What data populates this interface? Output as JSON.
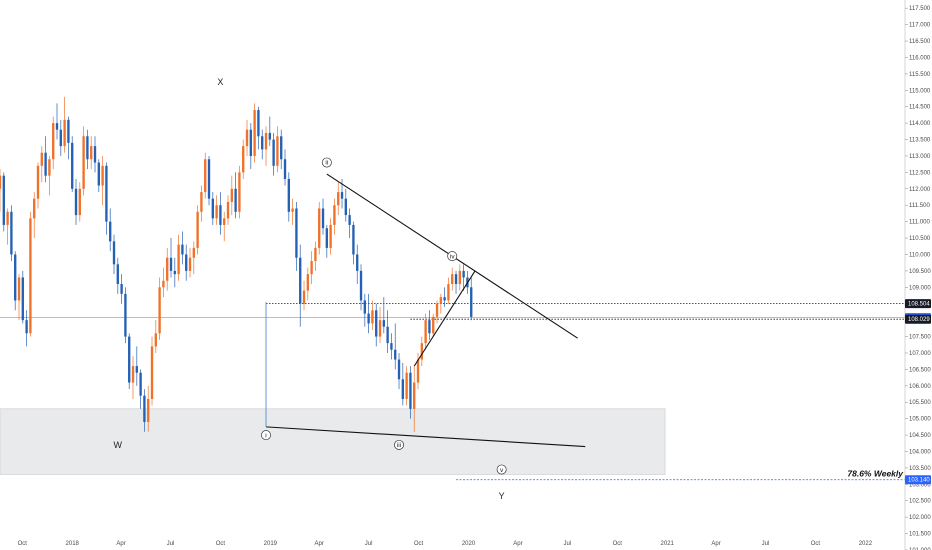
{
  "chart_data": {
    "type": "candlestick",
    "colors": {
      "up": "#f0722a",
      "down": "#2461b5",
      "zone": "#e2e3e5",
      "fib": "#2962ff",
      "badge_dark": "#161a25",
      "badge_blue": "#2962ff"
    },
    "ylim": [
      101.0,
      117.75
    ],
    "xlim": [
      "2017-08-21",
      "2022-03-15"
    ],
    "x_ticks": [
      {
        "label": "Oct",
        "date": "2017-10-01"
      },
      {
        "label": "2018",
        "date": "2018-01-01"
      },
      {
        "label": "Apr",
        "date": "2018-04-01"
      },
      {
        "label": "Jul",
        "date": "2018-07-01"
      },
      {
        "label": "Oct",
        "date": "2018-10-01"
      },
      {
        "label": "2019",
        "date": "2019-01-01"
      },
      {
        "label": "Apr",
        "date": "2019-04-01"
      },
      {
        "label": "Jul",
        "date": "2019-07-01"
      },
      {
        "label": "Oct",
        "date": "2019-10-01"
      },
      {
        "label": "2020",
        "date": "2020-01-01"
      },
      {
        "label": "Apr",
        "date": "2020-04-01"
      },
      {
        "label": "Jul",
        "date": "2020-07-01"
      },
      {
        "label": "Oct",
        "date": "2020-10-01"
      },
      {
        "label": "2021",
        "date": "2021-01-01"
      },
      {
        "label": "Apr",
        "date": "2021-04-01"
      },
      {
        "label": "Jul",
        "date": "2021-07-01"
      },
      {
        "label": "Oct",
        "date": "2021-10-01"
      },
      {
        "label": "2022",
        "date": "2022-01-01"
      }
    ],
    "y_ticks": [
      "101.000",
      "101.500",
      "102.000",
      "102.500",
      "103.000",
      "103.500",
      "104.000",
      "104.500",
      "105.000",
      "105.500",
      "106.000",
      "106.500",
      "107.000",
      "107.500",
      "108.000",
      "108.500",
      "109.000",
      "109.500",
      "110.000",
      "110.500",
      "111.000",
      "111.500",
      "112.000",
      "112.500",
      "113.000",
      "113.500",
      "114.000",
      "114.500",
      "115.000",
      "115.500",
      "116.000",
      "116.500",
      "117.000",
      "117.500"
    ],
    "price_badges": [
      {
        "label": "108.504",
        "price": 108.504,
        "style": "dark"
      },
      {
        "label": "108.075",
        "price": 108.075,
        "style": "blue"
      },
      {
        "label": "108.029",
        "price": 108.029,
        "style": "dark"
      },
      {
        "label": "103.140",
        "price": 103.14,
        "style": "blue"
      }
    ],
    "h_lines": [
      {
        "price": 108.504,
        "from": "2018-12-24",
        "style": "dotted"
      },
      {
        "price": 108.029,
        "from": "2019-09-16",
        "style": "dotted"
      },
      {
        "price": 108.075,
        "from": "2017-08-21",
        "style": "solid-thin"
      }
    ],
    "zone": {
      "from": "2017-08-21",
      "to": "2020-12-28",
      "low": 103.3,
      "high": 105.3
    },
    "fib_line": {
      "price": 103.14,
      "from": "2019-12-09",
      "label": "78.6% Weekly"
    },
    "trend_lines": [
      {
        "from": [
          "2019-04-15",
          112.45
        ],
        "to": [
          "2020-07-20",
          107.45
        ]
      },
      {
        "from": [
          "2018-12-24",
          104.75
        ],
        "to": [
          "2020-08-03",
          104.15
        ]
      },
      {
        "from": [
          "2019-09-23",
          106.6
        ],
        "to": [
          "2020-01-13",
          109.5
        ]
      },
      {
        "from": [
          "2018-12-24",
          108.55
        ],
        "to": [
          "2018-12-24",
          104.75
        ]
      }
    ],
    "wave_labels": [
      {
        "text": "X",
        "date": "2018-10-01",
        "price": 115.25,
        "style": "plain"
      },
      {
        "text": "W",
        "date": "2018-03-26",
        "price": 104.2,
        "style": "plain"
      },
      {
        "text": "Y",
        "date": "2020-03-02",
        "price": 102.65,
        "style": "plain"
      },
      {
        "text": "ii",
        "date": "2019-04-15",
        "price": 112.8,
        "style": "circle"
      },
      {
        "text": "i",
        "date": "2018-12-24",
        "price": 104.5,
        "style": "circle"
      },
      {
        "text": "iii",
        "date": "2019-08-26",
        "price": 104.2,
        "style": "circle"
      },
      {
        "text": "iv",
        "date": "2019-12-02",
        "price": 109.95,
        "style": "circle"
      },
      {
        "text": "v",
        "date": "2020-03-02",
        "price": 103.45,
        "style": "circle"
      }
    ],
    "start_date": "2017-08-21",
    "candles": [
      [
        112.0,
        112.6,
        111.3,
        112.4
      ],
      [
        112.4,
        112.5,
        110.7,
        110.9
      ],
      [
        110.9,
        111.4,
        110.3,
        111.3
      ],
      [
        111.3,
        111.5,
        109.8,
        110.0
      ],
      [
        110.0,
        110.1,
        108.3,
        108.6
      ],
      [
        108.6,
        109.4,
        108.0,
        109.3
      ],
      [
        109.3,
        109.5,
        107.9,
        108.0
      ],
      [
        108.0,
        108.3,
        107.2,
        107.6
      ],
      [
        107.6,
        111.3,
        107.5,
        111.1
      ],
      [
        111.1,
        111.9,
        110.5,
        111.7
      ],
      [
        111.7,
        112.8,
        111.4,
        112.7
      ],
      [
        112.7,
        113.3,
        112.2,
        113.1
      ],
      [
        113.1,
        113.6,
        112.2,
        112.4
      ],
      [
        112.4,
        113.0,
        111.8,
        112.9
      ],
      [
        112.9,
        114.2,
        112.6,
        114.0
      ],
      [
        114.0,
        114.6,
        113.5,
        113.8
      ],
      [
        113.8,
        114.1,
        113.0,
        113.3
      ],
      [
        113.3,
        114.8,
        113.1,
        114.1
      ],
      [
        114.1,
        114.2,
        112.9,
        113.4
      ],
      [
        113.4,
        113.6,
        111.9,
        112.0
      ],
      [
        112.0,
        112.3,
        110.9,
        111.2
      ],
      [
        111.2,
        112.2,
        111.0,
        112.0
      ],
      [
        112.0,
        113.9,
        111.8,
        113.6
      ],
      [
        113.6,
        113.8,
        112.6,
        112.9
      ],
      [
        112.9,
        113.6,
        112.6,
        113.3
      ],
      [
        113.3,
        113.6,
        112.5,
        112.8
      ],
      [
        112.8,
        112.9,
        111.9,
        112.1
      ],
      [
        112.1,
        113.0,
        111.5,
        112.7
      ],
      [
        112.7,
        112.8,
        110.6,
        111.0
      ],
      [
        111.0,
        111.4,
        110.1,
        110.4
      ],
      [
        110.4,
        110.6,
        109.4,
        109.7
      ],
      [
        109.7,
        109.9,
        108.8,
        109.1
      ],
      [
        109.1,
        109.4,
        108.5,
        108.8
      ],
      [
        108.8,
        109.0,
        107.3,
        107.5
      ],
      [
        107.5,
        107.6,
        105.9,
        106.1
      ],
      [
        106.1,
        106.9,
        105.6,
        106.6
      ],
      [
        106.6,
        107.2,
        106.0,
        106.4
      ],
      [
        106.4,
        106.5,
        105.3,
        105.7
      ],
      [
        105.7,
        105.9,
        104.6,
        104.9
      ],
      [
        104.9,
        106.0,
        104.6,
        105.6
      ],
      [
        105.6,
        107.5,
        105.4,
        107.2
      ],
      [
        107.2,
        108.0,
        107.0,
        107.6
      ],
      [
        107.6,
        109.3,
        107.4,
        109.0
      ],
      [
        109.0,
        109.6,
        108.7,
        109.2
      ],
      [
        109.2,
        110.2,
        108.9,
        109.9
      ],
      [
        109.9,
        110.5,
        109.3,
        109.5
      ],
      [
        109.5,
        109.9,
        109.0,
        109.4
      ],
      [
        109.4,
        110.6,
        109.2,
        110.3
      ],
      [
        110.3,
        110.7,
        109.7,
        110.0
      ],
      [
        110.0,
        110.3,
        109.2,
        109.5
      ],
      [
        109.5,
        110.2,
        109.3,
        109.9
      ],
      [
        109.9,
        110.4,
        109.4,
        110.2
      ],
      [
        110.2,
        111.5,
        110.0,
        111.3
      ],
      [
        111.3,
        112.1,
        111.0,
        111.9
      ],
      [
        111.9,
        113.1,
        111.7,
        112.9
      ],
      [
        112.9,
        113.0,
        111.5,
        111.7
      ],
      [
        111.7,
        111.9,
        110.9,
        111.1
      ],
      [
        111.1,
        111.8,
        110.9,
        111.5
      ],
      [
        111.5,
        111.9,
        110.6,
        110.9
      ],
      [
        110.9,
        111.3,
        110.4,
        111.1
      ],
      [
        111.1,
        111.8,
        110.9,
        111.6
      ],
      [
        111.6,
        112.4,
        111.2,
        112.0
      ],
      [
        112.0,
        112.5,
        111.1,
        111.3
      ],
      [
        111.3,
        112.7,
        111.1,
        112.5
      ],
      [
        112.5,
        113.5,
        112.3,
        113.3
      ],
      [
        113.3,
        114.1,
        113.0,
        113.8
      ],
      [
        113.8,
        114.0,
        112.6,
        113.0
      ],
      [
        113.0,
        114.6,
        112.8,
        114.4
      ],
      [
        114.4,
        114.5,
        113.2,
        113.6
      ],
      [
        113.6,
        113.8,
        112.9,
        113.2
      ],
      [
        113.2,
        113.9,
        112.7,
        113.7
      ],
      [
        113.7,
        114.2,
        113.3,
        113.5
      ],
      [
        113.5,
        113.7,
        112.4,
        112.7
      ],
      [
        112.7,
        113.9,
        112.5,
        113.6
      ],
      [
        113.6,
        113.8,
        112.6,
        112.9
      ],
      [
        112.9,
        113.2,
        112.1,
        112.3
      ],
      [
        112.3,
        112.5,
        111.0,
        111.3
      ],
      [
        111.3,
        111.7,
        110.9,
        111.4
      ],
      [
        111.4,
        111.6,
        109.5,
        109.9
      ],
      [
        109.9,
        110.3,
        107.8,
        108.5
      ],
      [
        108.5,
        109.2,
        108.3,
        108.9
      ],
      [
        108.9,
        109.6,
        108.6,
        109.4
      ],
      [
        109.4,
        110.1,
        109.1,
        109.8
      ],
      [
        109.8,
        110.4,
        109.5,
        110.2
      ],
      [
        110.2,
        111.6,
        110.0,
        111.4
      ],
      [
        111.4,
        111.7,
        110.6,
        110.8
      ],
      [
        110.8,
        110.9,
        109.9,
        110.2
      ],
      [
        110.2,
        111.1,
        110.0,
        110.9
      ],
      [
        110.9,
        111.7,
        110.6,
        111.5
      ],
      [
        111.5,
        112.2,
        111.2,
        111.9
      ],
      [
        111.9,
        112.3,
        111.4,
        111.7
      ],
      [
        111.7,
        112.0,
        111.0,
        111.2
      ],
      [
        111.2,
        111.4,
        110.5,
        110.9
      ],
      [
        110.9,
        111.0,
        109.7,
        110.0
      ],
      [
        110.0,
        110.3,
        109.1,
        109.5
      ],
      [
        109.5,
        109.7,
        108.3,
        108.6
      ],
      [
        108.6,
        108.8,
        107.8,
        108.2
      ],
      [
        108.2,
        108.8,
        107.6,
        107.9
      ],
      [
        107.9,
        108.6,
        107.7,
        108.3
      ],
      [
        108.3,
        108.5,
        107.2,
        107.5
      ],
      [
        107.5,
        108.4,
        107.3,
        108.0
      ],
      [
        108.0,
        108.7,
        107.6,
        107.8
      ],
      [
        107.8,
        108.3,
        107.0,
        107.3
      ],
      [
        107.3,
        107.6,
        106.8,
        107.1
      ],
      [
        107.1,
        107.9,
        106.5,
        106.8
      ],
      [
        106.8,
        107.0,
        105.9,
        106.2
      ],
      [
        106.2,
        106.7,
        105.4,
        105.6
      ],
      [
        105.6,
        106.6,
        105.4,
        106.4
      ],
      [
        106.4,
        106.6,
        105.0,
        105.3
      ],
      [
        105.3,
        106.6,
        104.6,
        106.1
      ],
      [
        106.1,
        107.0,
        105.9,
        106.8
      ],
      [
        106.8,
        107.5,
        106.6,
        107.3
      ],
      [
        107.3,
        108.2,
        107.1,
        108.0
      ],
      [
        108.0,
        108.3,
        107.4,
        107.6
      ],
      [
        107.6,
        108.2,
        107.5,
        108.1
      ],
      [
        108.1,
        108.6,
        107.9,
        108.5
      ],
      [
        108.5,
        108.8,
        108.2,
        108.7
      ],
      [
        108.7,
        109.0,
        108.4,
        108.6
      ],
      [
        108.6,
        109.3,
        108.5,
        109.1
      ],
      [
        109.1,
        109.6,
        108.9,
        109.4
      ],
      [
        109.4,
        109.5,
        108.8,
        109.1
      ],
      [
        109.1,
        109.7,
        108.9,
        109.5
      ],
      [
        109.5,
        109.7,
        108.9,
        109.3
      ],
      [
        109.3,
        109.5,
        108.8,
        109.0
      ],
      [
        109.0,
        109.3,
        108.0,
        108.1
      ]
    ]
  }
}
